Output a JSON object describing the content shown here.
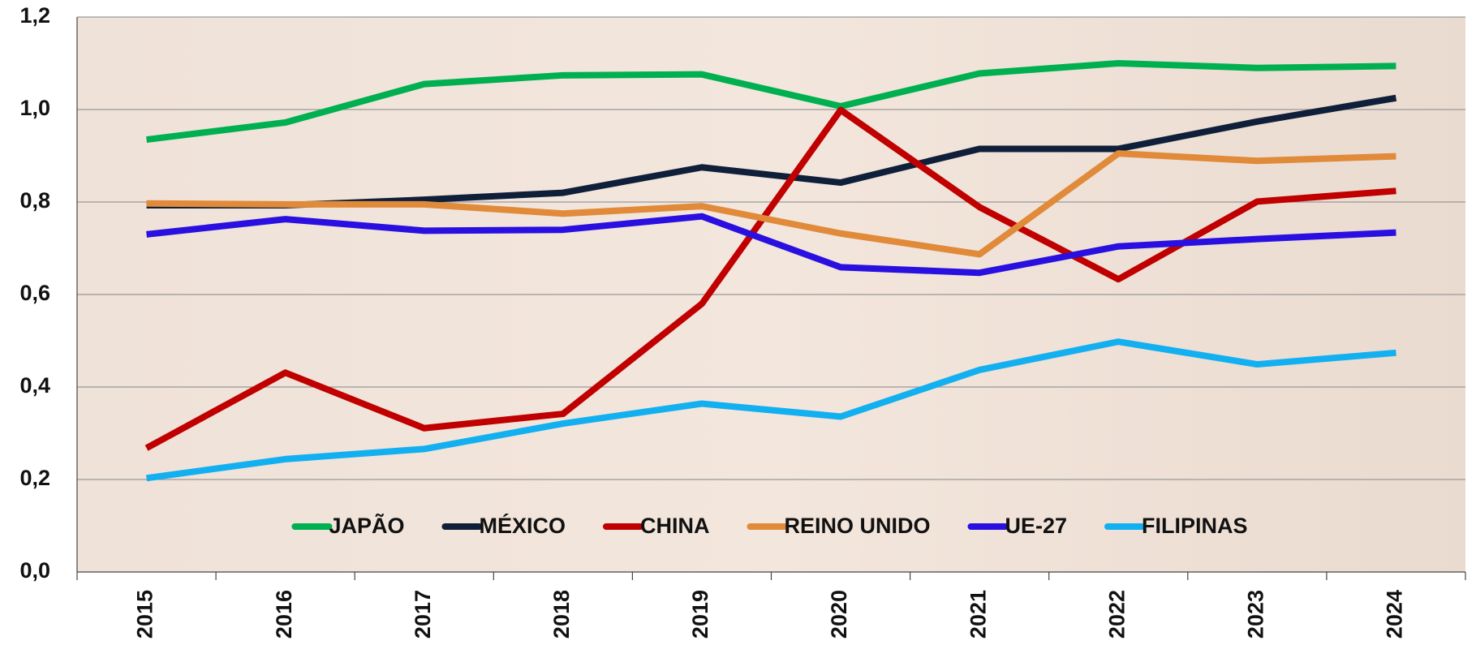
{
  "chart_data": {
    "type": "line",
    "categories": [
      "2015",
      "2016",
      "2017",
      "2018",
      "2019",
      "2020",
      "2021",
      "2022",
      "2023",
      "2024"
    ],
    "series": [
      {
        "name": "JAPÃO",
        "color": "#00b050",
        "values": [
          0.935,
          0.972,
          1.055,
          1.074,
          1.076,
          1.007,
          1.078,
          1.1,
          1.09,
          1.094
        ]
      },
      {
        "name": "MÉXICO",
        "color": "#0f1f3a",
        "values": [
          0.793,
          0.793,
          0.805,
          0.82,
          0.875,
          0.842,
          0.915,
          0.915,
          0.974,
          1.025
        ]
      },
      {
        "name": "CHINA",
        "color": "#c00000",
        "values": [
          0.268,
          0.431,
          0.311,
          0.342,
          0.58,
          0.999,
          0.789,
          0.633,
          0.801,
          0.824
        ]
      },
      {
        "name": "REINO UNIDO",
        "color": "#e08a3a",
        "values": [
          0.797,
          0.795,
          0.795,
          0.775,
          0.791,
          0.732,
          0.687,
          0.905,
          0.889,
          0.899
        ]
      },
      {
        "name": "UE-27",
        "color": "#2a10e0",
        "values": [
          0.73,
          0.763,
          0.738,
          0.74,
          0.769,
          0.659,
          0.647,
          0.704,
          0.72,
          0.734
        ]
      },
      {
        "name": "FILIPINAS",
        "color": "#12b0f0",
        "values": [
          0.203,
          0.244,
          0.266,
          0.321,
          0.364,
          0.336,
          0.437,
          0.498,
          0.449,
          0.474
        ]
      }
    ],
    "ylim": [
      0,
      1.2
    ],
    "yticks": [
      {
        "value": 0,
        "label": "0,0"
      },
      {
        "value": 0.2,
        "label": "0,2"
      },
      {
        "value": 0.4,
        "label": "0,4"
      },
      {
        "value": 0.6,
        "label": "0,6"
      },
      {
        "value": 0.8,
        "label": "0,8"
      },
      {
        "value": 1.0,
        "label": "1,0"
      },
      {
        "value": 1.2,
        "label": "1,2"
      }
    ],
    "grid": true,
    "legend": "lower center"
  }
}
